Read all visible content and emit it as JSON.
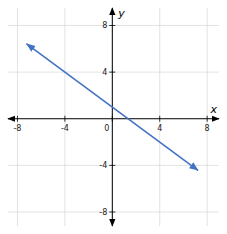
{
  "chart_data": {
    "type": "line",
    "x": [
      -7.2,
      7.2
    ],
    "values": [
      6.4,
      -4.4
    ],
    "color": "#4472c4",
    "marker": "arrow",
    "xlabel": "x",
    "ylabel": "y",
    "xlim": [
      -8.8,
      9.0
    ],
    "ylim": [
      -9.2,
      9.5
    ],
    "xticks": [
      -8,
      -4,
      0,
      4,
      8
    ],
    "yticks": [
      -8,
      -4,
      4,
      8
    ],
    "grid": true
  }
}
